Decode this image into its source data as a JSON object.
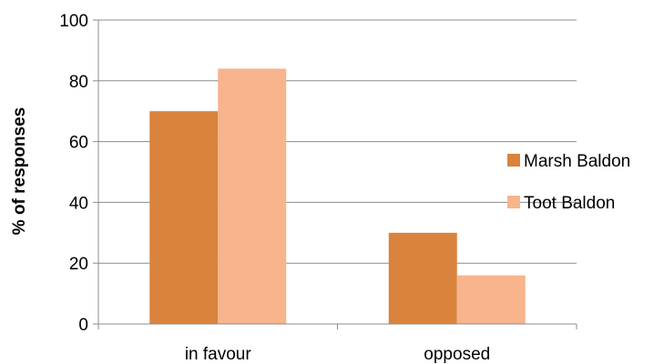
{
  "chart_data": {
    "type": "bar",
    "categories": [
      "in favour",
      "opposed"
    ],
    "series": [
      {
        "name": "Marsh Baldon",
        "color": "#D9833D",
        "values": [
          70,
          30
        ]
      },
      {
        "name": "Toot Baldon",
        "color": "#F8B48C",
        "values": [
          84,
          16
        ]
      }
    ],
    "title": "",
    "xlabel": "",
    "ylabel": "% of responses",
    "ylim": [
      0,
      100
    ],
    "yticks": [
      0,
      20,
      40,
      60,
      80,
      100
    ],
    "grid": true,
    "legend_position": "right"
  }
}
